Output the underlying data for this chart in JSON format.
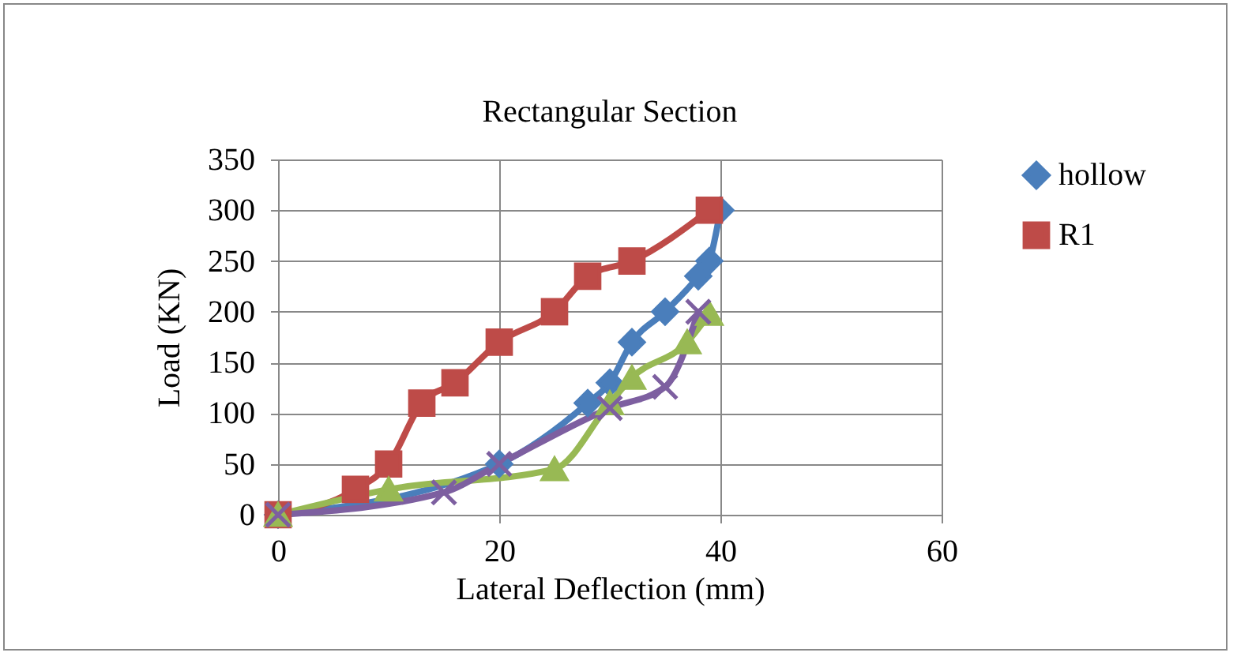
{
  "chart_data": {
    "type": "line",
    "title": "Rectangular Section",
    "xlabel": "Lateral Deflection (mm)",
    "ylabel": "Load (KN)",
    "xlim": [
      0,
      60
    ],
    "xticks": [
      0,
      20,
      40,
      60
    ],
    "ylim": [
      0,
      350
    ],
    "yticks": [
      0,
      50,
      100,
      150,
      200,
      250,
      300,
      350
    ],
    "grid": true,
    "legend": "right",
    "line_style": "solid",
    "series": [
      {
        "name": "hollow",
        "color": "#4a7ebb",
        "marker": "diamond",
        "x": [
          0,
          20,
          28,
          30,
          32,
          35,
          38,
          39,
          40
        ],
        "values": [
          0,
          50,
          110,
          130,
          170,
          200,
          235,
          250,
          300
        ]
      },
      {
        "name": "R1",
        "color": "#be4b48",
        "marker": "square",
        "x": [
          0,
          7,
          10,
          13,
          16,
          20,
          25,
          28,
          32,
          39
        ],
        "values": [
          0,
          25,
          50,
          110,
          130,
          170,
          200,
          235,
          250,
          300
        ]
      },
      {
        "color": "#98b954",
        "marker": "triangle",
        "x": [
          0,
          10,
          25,
          30,
          32,
          37,
          39
        ],
        "values": [
          0,
          25,
          45,
          110,
          135,
          170,
          198
        ]
      },
      {
        "color": "#7d5fa0",
        "marker": "cross",
        "x": [
          0,
          15,
          20,
          30,
          35,
          38
        ],
        "values": [
          0,
          22,
          50,
          105,
          126,
          200
        ]
      }
    ]
  }
}
